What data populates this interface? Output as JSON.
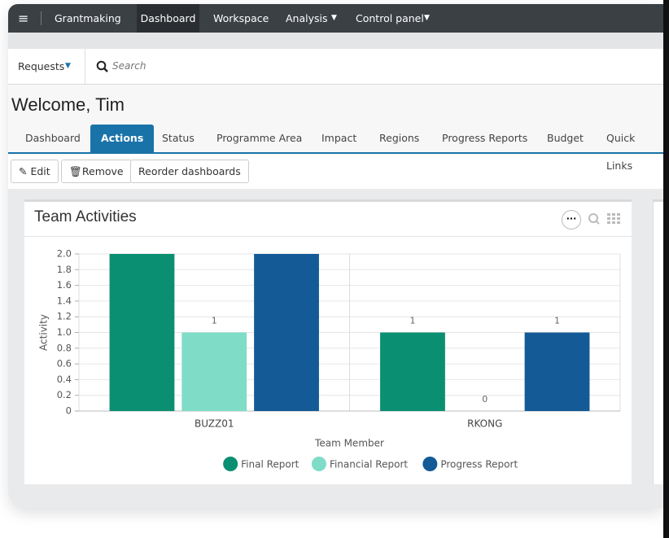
{
  "nav": {
    "items": [
      "Grantmaking",
      "Dashboard",
      "Workspace",
      "Analysis",
      "Control panel"
    ]
  },
  "search": {
    "scope": "Requests",
    "placeholder": "Search"
  },
  "page_title": "Welcome, Tim",
  "tabs": [
    "Dashboard",
    "Actions",
    "Status",
    "Programme Area",
    "Impact",
    "Regions",
    "Progress Reports",
    "Budget",
    "Quick Links"
  ],
  "buttons": [
    "Edit",
    "Remove",
    "Reorder dashboards"
  ],
  "chart_data": {
    "type": "bar",
    "title": "Team Activities",
    "x_label": "Team Member",
    "y_label": "Activity",
    "categories": [
      "BUZZ01",
      "RKONG"
    ],
    "series": [
      {
        "name": "Final Report",
        "color": "#0b8f72",
        "values": [
          2,
          1
        ]
      },
      {
        "name": "Financial Report",
        "color": "#7fdcc7",
        "values": [
          1,
          0
        ]
      },
      {
        "name": "Progress Report",
        "color": "#145a96",
        "values": [
          2,
          1
        ]
      }
    ],
    "ylim": [
      0,
      2
    ],
    "yticks": [
      0,
      0.2,
      0.4,
      0.6,
      0.8,
      {
        "value": 1,
        "label": "1.0"
      },
      1.2,
      1.4,
      1.6,
      1.8,
      {
        "value": 2,
        "label": "2.0"
      }
    ],
    "grid": true,
    "data_labels": true,
    "legend": "bottom"
  }
}
